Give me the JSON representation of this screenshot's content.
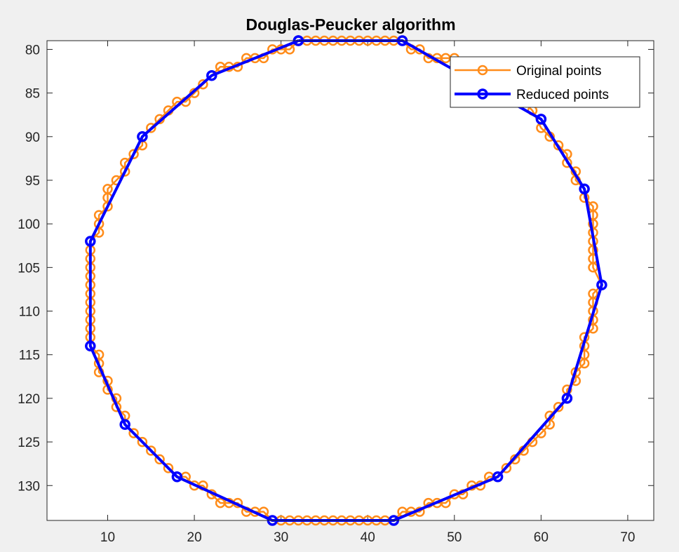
{
  "figure": {
    "background": "#f0f0f0"
  },
  "chart_data": {
    "type": "line",
    "title": "Douglas-Peucker algorithm",
    "xlabel": "",
    "ylabel": "",
    "xlim": [
      3,
      73
    ],
    "ylim": [
      79,
      134
    ],
    "y_reversed": true,
    "xticks": [
      10,
      20,
      30,
      40,
      50,
      60,
      70
    ],
    "yticks": [
      80,
      85,
      90,
      95,
      100,
      105,
      110,
      115,
      120,
      125,
      130
    ],
    "grid": false,
    "legend_position": "top-right",
    "series": [
      {
        "name": "Original points",
        "color": "#ff8c1a",
        "marker": "circle-open",
        "points": [
          [
            32,
            79
          ],
          [
            33,
            79
          ],
          [
            34,
            79
          ],
          [
            35,
            79
          ],
          [
            36,
            79
          ],
          [
            37,
            79
          ],
          [
            38,
            79
          ],
          [
            39,
            79
          ],
          [
            40,
            79
          ],
          [
            41,
            79
          ],
          [
            42,
            79
          ],
          [
            43,
            79
          ],
          [
            44,
            79
          ],
          [
            45,
            80
          ],
          [
            46,
            80
          ],
          [
            47,
            81
          ],
          [
            48,
            81
          ],
          [
            49,
            81
          ],
          [
            50,
            81
          ],
          [
            51,
            82
          ],
          [
            52,
            82
          ],
          [
            53,
            83
          ],
          [
            54,
            84
          ],
          [
            55,
            84
          ],
          [
            56,
            85
          ],
          [
            57,
            86
          ],
          [
            58,
            86
          ],
          [
            59,
            87
          ],
          [
            60,
            89
          ],
          [
            61,
            90
          ],
          [
            62,
            91
          ],
          [
            63,
            92
          ],
          [
            63,
            93
          ],
          [
            64,
            94
          ],
          [
            64,
            95
          ],
          [
            65,
            96
          ],
          [
            65,
            97
          ],
          [
            66,
            98
          ],
          [
            66,
            99
          ],
          [
            66,
            100
          ],
          [
            66,
            101
          ],
          [
            66,
            102
          ],
          [
            66,
            103
          ],
          [
            66,
            104
          ],
          [
            66,
            105
          ],
          [
            67,
            107
          ],
          [
            66,
            108
          ],
          [
            66,
            109
          ],
          [
            66,
            110
          ],
          [
            66,
            111
          ],
          [
            66,
            112
          ],
          [
            65,
            113
          ],
          [
            65,
            114
          ],
          [
            65,
            115
          ],
          [
            65,
            116
          ],
          [
            64,
            117
          ],
          [
            64,
            118
          ],
          [
            63,
            119
          ],
          [
            63,
            120
          ],
          [
            62,
            121
          ],
          [
            61,
            122
          ],
          [
            61,
            123
          ],
          [
            60,
            124
          ],
          [
            59,
            125
          ],
          [
            58,
            126
          ],
          [
            57,
            127
          ],
          [
            56,
            128
          ],
          [
            55,
            129
          ],
          [
            54,
            129
          ],
          [
            53,
            130
          ],
          [
            52,
            130
          ],
          [
            51,
            131
          ],
          [
            50,
            131
          ],
          [
            49,
            132
          ],
          [
            48,
            132
          ],
          [
            47,
            132
          ],
          [
            46,
            133
          ],
          [
            45,
            133
          ],
          [
            44,
            133
          ],
          [
            43,
            134
          ],
          [
            42,
            134
          ],
          [
            41,
            134
          ],
          [
            40,
            134
          ],
          [
            39,
            134
          ],
          [
            38,
            134
          ],
          [
            37,
            134
          ],
          [
            36,
            134
          ],
          [
            35,
            134
          ],
          [
            34,
            134
          ],
          [
            33,
            134
          ],
          [
            32,
            134
          ],
          [
            31,
            134
          ],
          [
            30,
            134
          ],
          [
            29,
            134
          ],
          [
            28,
            133
          ],
          [
            27,
            133
          ],
          [
            26,
            133
          ],
          [
            25,
            132
          ],
          [
            24,
            132
          ],
          [
            23,
            132
          ],
          [
            22,
            131
          ],
          [
            21,
            130
          ],
          [
            20,
            130
          ],
          [
            19,
            129
          ],
          [
            18,
            129
          ],
          [
            17,
            128
          ],
          [
            16,
            127
          ],
          [
            15,
            126
          ],
          [
            14,
            125
          ],
          [
            13,
            124
          ],
          [
            12,
            123
          ],
          [
            12,
            122
          ],
          [
            11,
            121
          ],
          [
            11,
            120
          ],
          [
            10,
            119
          ],
          [
            10,
            118
          ],
          [
            9,
            117
          ],
          [
            9,
            116
          ],
          [
            9,
            115
          ],
          [
            8,
            114
          ],
          [
            8,
            113
          ],
          [
            8,
            112
          ],
          [
            8,
            111
          ],
          [
            8,
            110
          ],
          [
            8,
            109
          ],
          [
            8,
            108
          ],
          [
            8,
            107
          ],
          [
            8,
            106
          ],
          [
            8,
            105
          ],
          [
            8,
            104
          ],
          [
            8,
            103
          ],
          [
            8,
            102
          ],
          [
            9,
            101
          ],
          [
            9,
            100
          ],
          [
            9,
            99
          ],
          [
            10,
            98
          ],
          [
            10,
            97
          ],
          [
            10,
            96
          ],
          [
            11,
            95
          ],
          [
            12,
            94
          ],
          [
            12,
            93
          ],
          [
            13,
            92
          ],
          [
            14,
            91
          ],
          [
            14,
            90
          ],
          [
            15,
            89
          ],
          [
            16,
            88
          ],
          [
            17,
            87
          ],
          [
            18,
            86
          ],
          [
            19,
            86
          ],
          [
            20,
            85
          ],
          [
            21,
            84
          ],
          [
            22,
            83
          ],
          [
            23,
            82
          ],
          [
            24,
            82
          ],
          [
            25,
            82
          ],
          [
            26,
            81
          ],
          [
            27,
            81
          ],
          [
            28,
            81
          ],
          [
            29,
            80
          ],
          [
            30,
            80
          ],
          [
            31,
            80
          ],
          [
            32,
            79
          ]
        ]
      },
      {
        "name": "Reduced points",
        "color": "#0000ff",
        "marker": "circle-open",
        "points": [
          [
            32,
            79
          ],
          [
            44,
            79
          ],
          [
            60,
            88
          ],
          [
            65,
            96
          ],
          [
            67,
            107
          ],
          [
            63,
            120
          ],
          [
            55,
            129
          ],
          [
            43,
            134
          ],
          [
            29,
            134
          ],
          [
            18,
            129
          ],
          [
            12,
            123
          ],
          [
            8,
            114
          ],
          [
            8,
            102
          ],
          [
            14,
            90
          ],
          [
            22,
            83
          ],
          [
            32,
            79
          ]
        ]
      }
    ]
  }
}
